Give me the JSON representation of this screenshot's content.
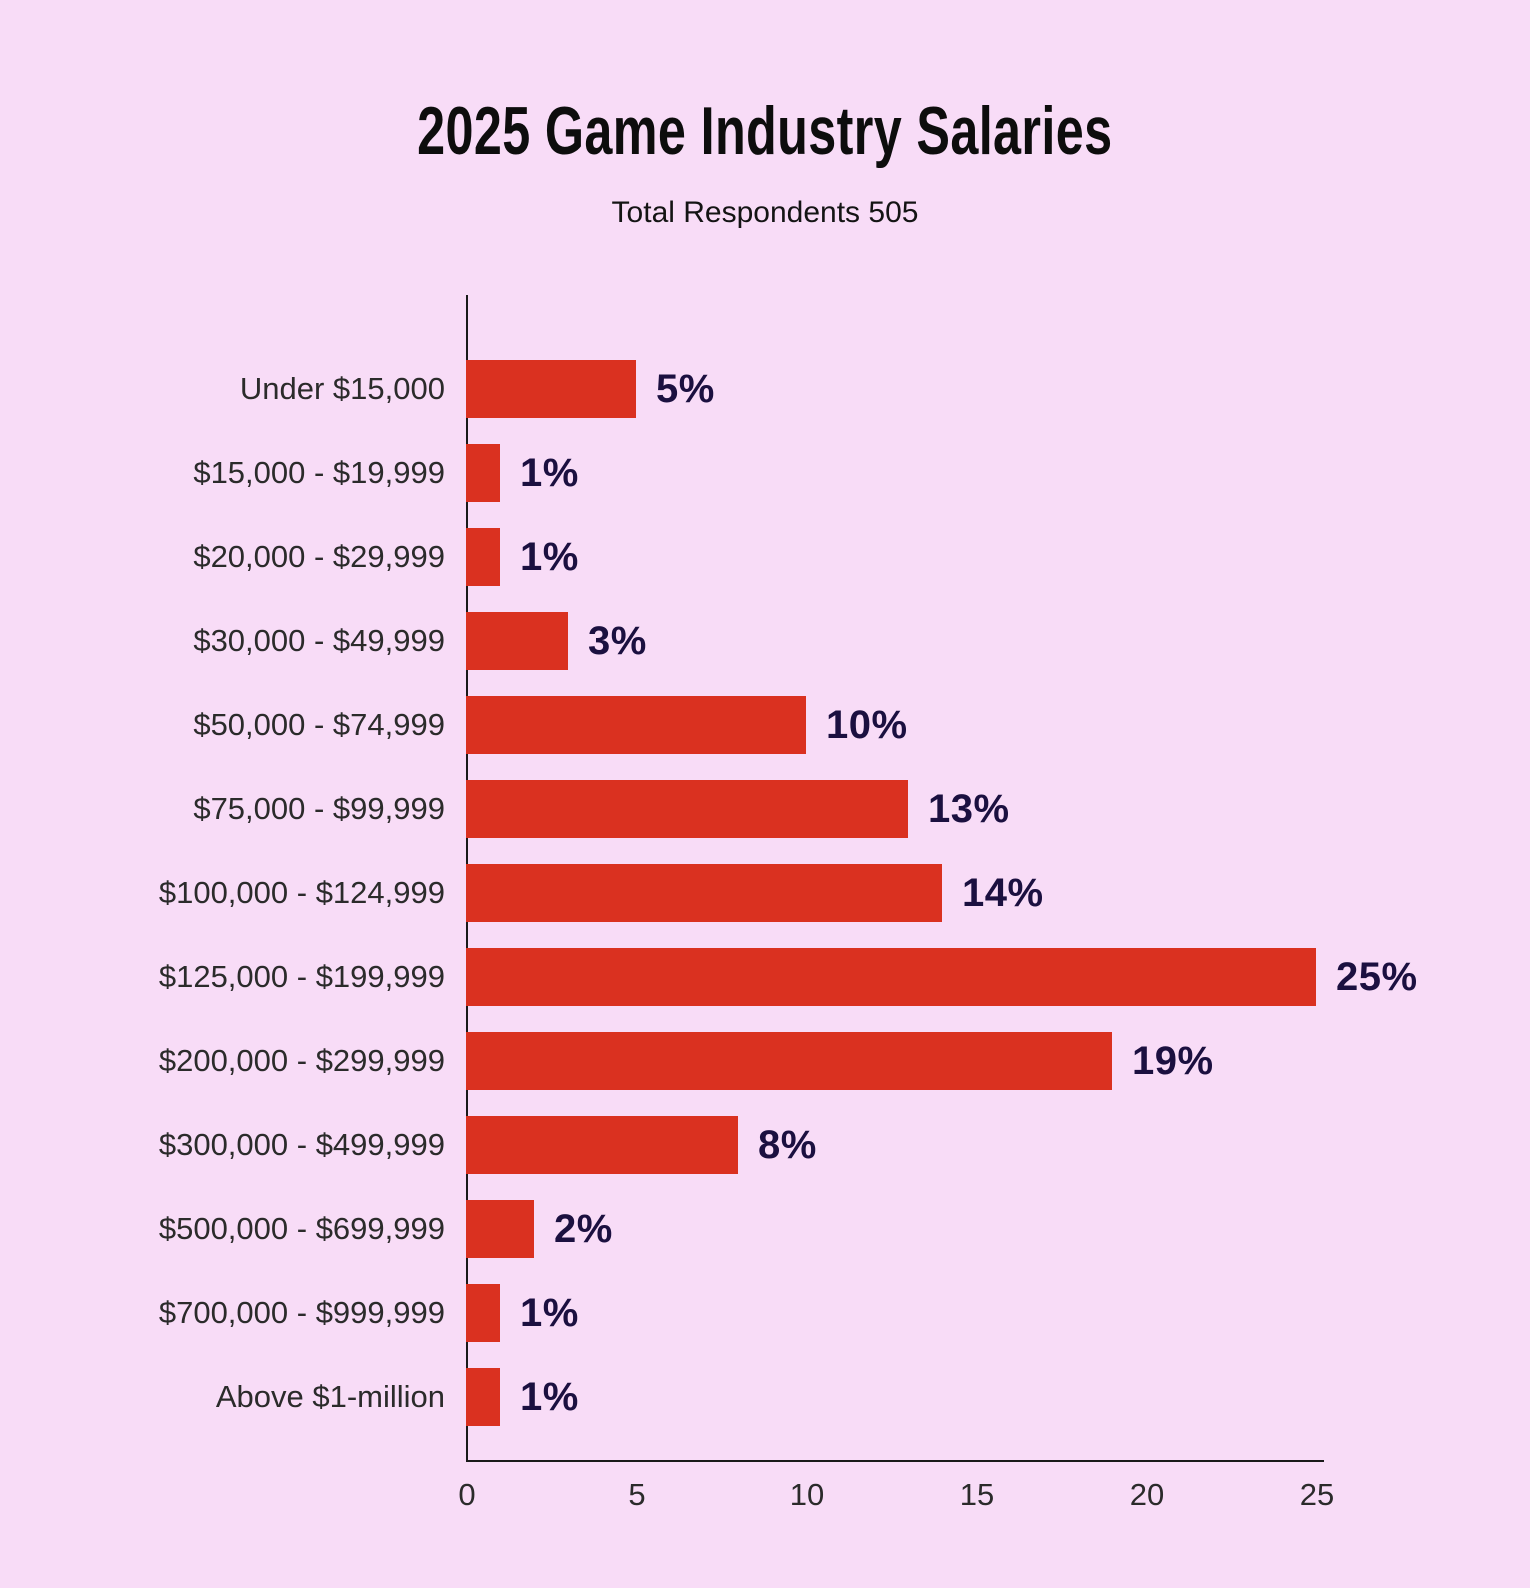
{
  "page": {
    "background_color": "#F8DCF7"
  },
  "chart_data": {
    "type": "bar",
    "orientation": "horizontal",
    "title": "2025 Game Industry Salaries",
    "subtitle": "Total Respondents 505",
    "categories": [
      "Under $15,000",
      "$15,000 - $19,999",
      "$20,000 - $29,999",
      "$30,000 - $49,999",
      "$50,000 - $74,999",
      "$75,000 - $99,999",
      "$100,000 - $124,999",
      "$125,000 - $199,999",
      "$200,000 - $299,999",
      "$300,000 - $499,999",
      "$500,000 - $699,999",
      "$700,000 - $999,999",
      "Above $1-million"
    ],
    "values": [
      5,
      1,
      1,
      3,
      10,
      13,
      14,
      25,
      19,
      8,
      2,
      1,
      1
    ],
    "value_labels": [
      "5%",
      "1%",
      "1%",
      "3%",
      "10%",
      "13%",
      "14%",
      "25%",
      "19%",
      "8%",
      "2%",
      "1%",
      "1%"
    ],
    "xlabel": "",
    "ylabel": "",
    "xlim": [
      0,
      25
    ],
    "xticks": [
      0,
      5,
      10,
      15,
      20,
      25
    ],
    "grid": false,
    "legend": "none",
    "bar_color": "#DA3120",
    "value_label_color": "#1B1040",
    "category_label_color": "#2B2B2B",
    "axis_color": "#1A1A1A",
    "background_color": "#F8DCF7"
  }
}
